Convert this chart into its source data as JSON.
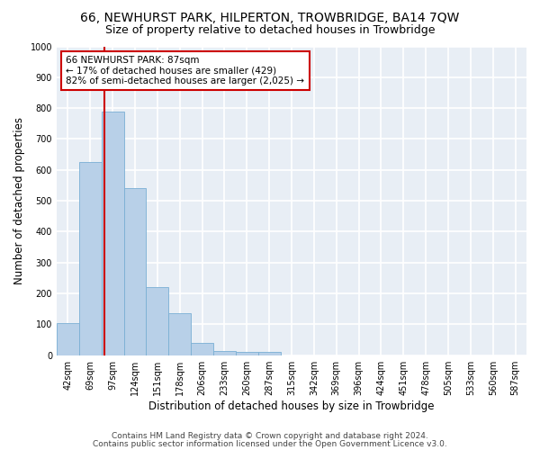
{
  "title": "66, NEWHURST PARK, HILPERTON, TROWBRIDGE, BA14 7QW",
  "subtitle": "Size of property relative to detached houses in Trowbridge",
  "xlabel": "Distribution of detached houses by size in Trowbridge",
  "ylabel": "Number of detached properties",
  "bar_labels": [
    "42sqm",
    "69sqm",
    "97sqm",
    "124sqm",
    "151sqm",
    "178sqm",
    "206sqm",
    "233sqm",
    "260sqm",
    "287sqm",
    "315sqm",
    "342sqm",
    "369sqm",
    "396sqm",
    "424sqm",
    "451sqm",
    "478sqm",
    "505sqm",
    "533sqm",
    "560sqm",
    "587sqm"
  ],
  "bar_values": [
    105,
    625,
    790,
    540,
    220,
    135,
    40,
    15,
    10,
    10,
    0,
    0,
    0,
    0,
    0,
    0,
    0,
    0,
    0,
    0,
    0
  ],
  "bar_color": "#b8d0e8",
  "bar_edge_color": "#7aafd4",
  "annotation_line1": "66 NEWHURST PARK: 87sqm",
  "annotation_line2": "← 17% of detached houses are smaller (429)",
  "annotation_line3": "82% of semi-detached houses are larger (2,025) →",
  "annotation_box_color": "#ffffff",
  "annotation_box_edge": "#cc0000",
  "vline_color": "#cc0000",
  "ylim": [
    0,
    1000
  ],
  "yticks": [
    0,
    100,
    200,
    300,
    400,
    500,
    600,
    700,
    800,
    900,
    1000
  ],
  "footer1": "Contains HM Land Registry data © Crown copyright and database right 2024.",
  "footer2": "Contains public sector information licensed under the Open Government Licence v3.0.",
  "fig_bg_color": "#ffffff",
  "plot_bg_color": "#e8eef5",
  "grid_color": "#ffffff",
  "title_fontsize": 10,
  "subtitle_fontsize": 9,
  "axis_label_fontsize": 8.5,
  "tick_fontsize": 7,
  "footer_fontsize": 6.5,
  "annotation_fontsize": 7.5
}
